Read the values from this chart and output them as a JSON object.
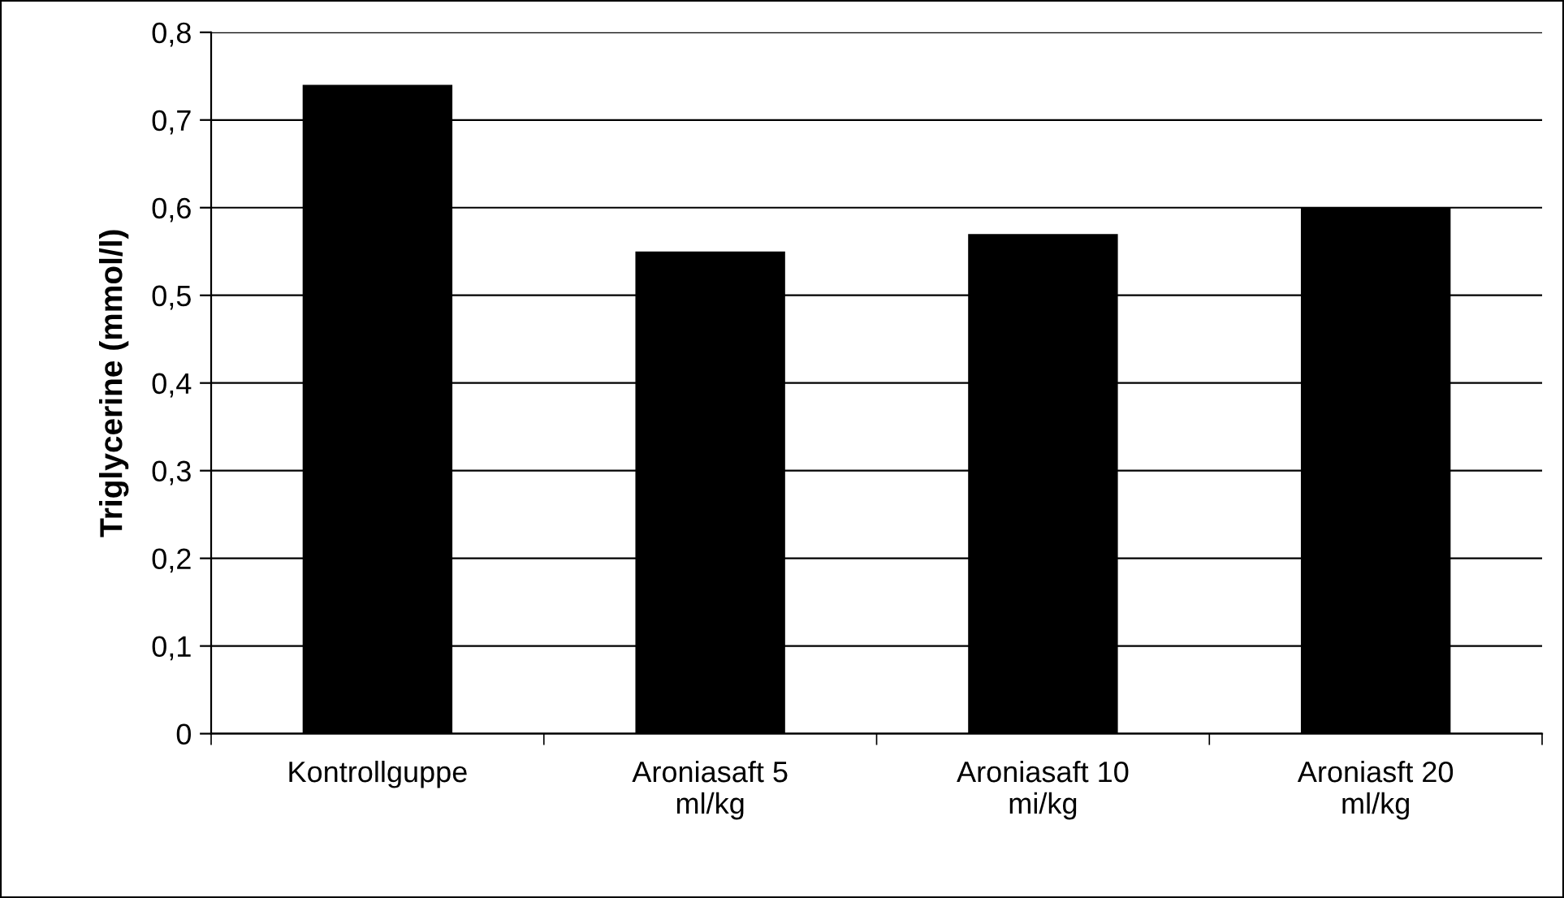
{
  "chart_data": {
    "type": "bar",
    "ylabel": "Triglycerine (mmol/l)",
    "categories": [
      "Kontrollguppe",
      "Aroniasaft 5\nml/kg",
      "Aroniasaft 10\nmi/kg",
      "Aroniasft 20\nml/kg"
    ],
    "values": [
      0.74,
      0.55,
      0.57,
      0.6
    ],
    "color": "#000000",
    "ylim": [
      0,
      0.8
    ],
    "yticks": [
      0,
      {
        "value": 0.1,
        "label": "0,1"
      },
      {
        "value": 0.2,
        "label": "0,2"
      },
      {
        "value": 0.3,
        "label": "0,3"
      },
      {
        "value": 0.4,
        "label": "0,4"
      },
      {
        "value": 0.5,
        "label": "0,5"
      },
      {
        "value": 0.6,
        "label": "0,6"
      },
      {
        "value": 0.7,
        "label": "0,7"
      },
      {
        "value": 0.8,
        "label": "0,8"
      }
    ],
    "grid": "y",
    "legend": false
  }
}
